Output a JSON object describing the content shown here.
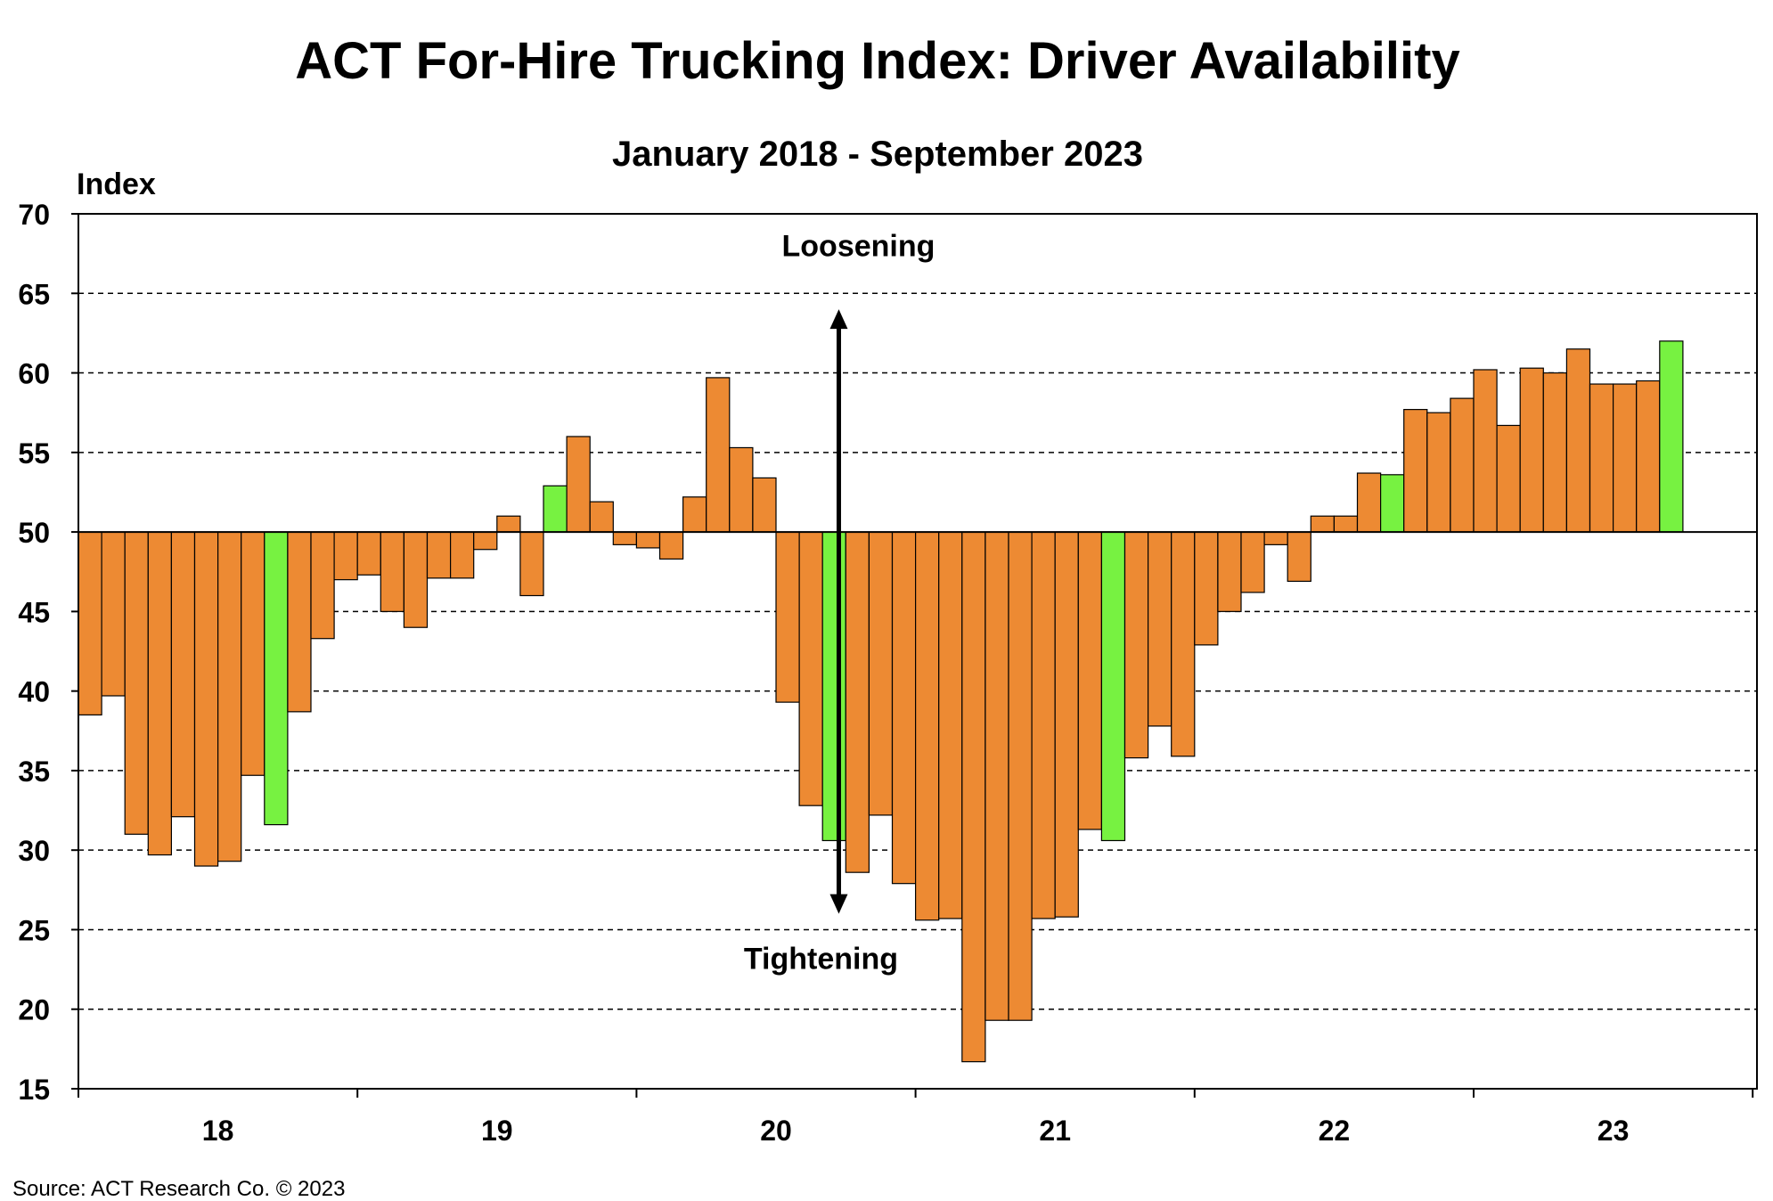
{
  "chart_data": {
    "type": "bar",
    "title": "ACT For-Hire Trucking Index: Driver Availability",
    "subtitle": "January 2018 - September 2023",
    "ylabel": "Index",
    "xlabel": "",
    "ylim": [
      15,
      70
    ],
    "yticks": [
      15,
      20,
      25,
      30,
      35,
      40,
      45,
      50,
      55,
      60,
      65,
      70
    ],
    "baseline": 50,
    "grid": "horizontal-dashed",
    "year_labels": [
      "18",
      "19",
      "20",
      "21",
      "22",
      "23"
    ],
    "annotations": {
      "top": "Loosening",
      "bottom": "Tightening"
    },
    "bar_color": "#ED8A33",
    "highlight_color": "#77F241",
    "highlight_indices": [
      8,
      20,
      32,
      44,
      56,
      68
    ],
    "values": [
      38.5,
      39.7,
      31.0,
      29.7,
      32.1,
      29.0,
      29.3,
      34.7,
      31.6,
      38.7,
      43.3,
      47.0,
      47.3,
      45.0,
      44.0,
      47.1,
      47.1,
      48.9,
      51.0,
      46.0,
      52.9,
      56.0,
      51.9,
      49.2,
      49.0,
      48.3,
      52.2,
      59.7,
      55.3,
      53.4,
      39.3,
      32.8,
      30.6,
      28.6,
      32.2,
      27.9,
      25.6,
      25.7,
      16.7,
      19.3,
      19.3,
      25.7,
      25.8,
      31.3,
      30.6,
      35.8,
      37.8,
      35.9,
      42.9,
      45.0,
      46.2,
      49.2,
      46.9,
      51.0,
      51.0,
      53.7,
      53.6,
      57.7,
      57.5,
      58.4,
      60.2,
      56.7,
      60.3,
      60.0,
      61.5,
      59.3,
      59.3,
      59.5,
      62.0
    ]
  },
  "footer": {
    "source": "Source:  ACT Research  Co. © 2023"
  }
}
